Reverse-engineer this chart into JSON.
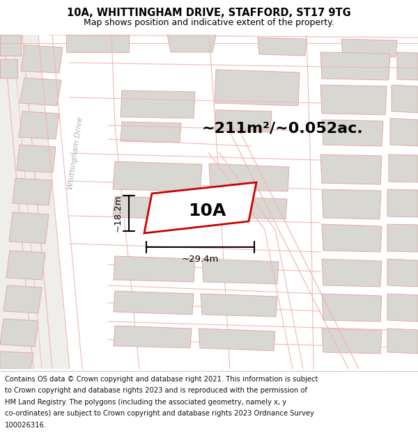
{
  "title_line1": "10A, WHITTINGHAM DRIVE, STAFFORD, ST17 9TG",
  "title_line2": "Map shows position and indicative extent of the property.",
  "area_text": "~211m²/~0.052ac.",
  "label_10A": "10A",
  "dim_height": "~18.2m",
  "dim_width": "~29.4m",
  "street_label": "Whittingham Drive",
  "footer_lines": [
    "Contains OS data © Crown copyright and database right 2021. This information is subject",
    "to Crown copyright and database rights 2023 and is reproduced with the permission of",
    "HM Land Registry. The polygons (including the associated geometry, namely x, y",
    "co-ordinates) are subject to Crown copyright and database rights 2023 Ordnance Survey",
    "100026316."
  ],
  "map_bg": "#f8f7f5",
  "building_fill": "#d8d7d2",
  "building_edge": "#e8a8a8",
  "road_line": "#f0b8b8",
  "red_line_color": "#cc0000",
  "prop_fill": "#ffffff",
  "black_color": "#000000",
  "street_label_color": "#b0b0b0",
  "title_fontsize": 10.5,
  "subtitle_fontsize": 9,
  "area_fontsize": 16,
  "label_fontsize": 18,
  "dim_fontsize": 9.5,
  "footer_fontsize": 7.2
}
